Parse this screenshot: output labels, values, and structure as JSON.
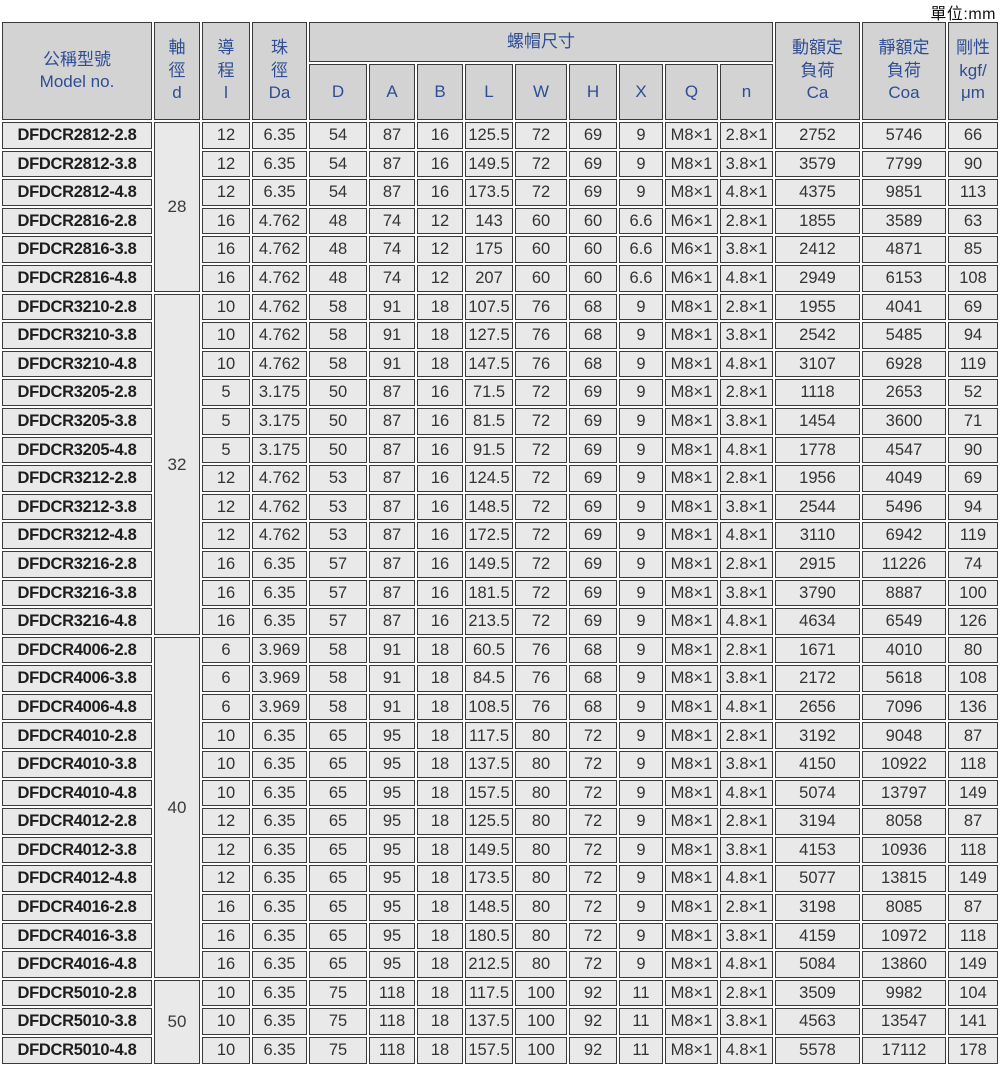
{
  "unit_label": "單位:mm",
  "table": {
    "header": {
      "model": "公稱型號\nModel no.",
      "shaft": "軸\n徑\nd",
      "lead": "導\n程\nl",
      "ball": "珠\n徑\nDa",
      "nut_group": "螺帽尺寸",
      "nut_cols": [
        "D",
        "A",
        "B",
        "L",
        "W",
        "H",
        "X",
        "Q",
        "n"
      ],
      "dynamic_load": "動額定\n負荷\nCa",
      "static_load": "靜額定\n負荷\nCoa",
      "rigidity": "剛性\nkgf/\nμm"
    },
    "colors": {
      "header_bg": "#d3d3d3",
      "cell_bg": "#e9e9e9",
      "header_text": "#2e4d93",
      "cell_text": "#333333",
      "border": "#3a3a3a"
    },
    "groups": [
      {
        "d": "28",
        "rows": [
          [
            "DFDCR2812-2.8",
            "12",
            "6.35",
            "54",
            "87",
            "16",
            "125.5",
            "72",
            "69",
            "9",
            "M8×1",
            "2.8×1",
            "2752",
            "5746",
            "66"
          ],
          [
            "DFDCR2812-3.8",
            "12",
            "6.35",
            "54",
            "87",
            "16",
            "149.5",
            "72",
            "69",
            "9",
            "M8×1",
            "3.8×1",
            "3579",
            "7799",
            "90"
          ],
          [
            "DFDCR2812-4.8",
            "12",
            "6.35",
            "54",
            "87",
            "16",
            "173.5",
            "72",
            "69",
            "9",
            "M8×1",
            "4.8×1",
            "4375",
            "9851",
            "113"
          ],
          [
            "DFDCR2816-2.8",
            "16",
            "4.762",
            "48",
            "74",
            "12",
            "143",
            "60",
            "60",
            "6.6",
            "M6×1",
            "2.8×1",
            "1855",
            "3589",
            "63"
          ],
          [
            "DFDCR2816-3.8",
            "16",
            "4.762",
            "48",
            "74",
            "12",
            "175",
            "60",
            "60",
            "6.6",
            "M6×1",
            "3.8×1",
            "2412",
            "4871",
            "85"
          ],
          [
            "DFDCR2816-4.8",
            "16",
            "4.762",
            "48",
            "74",
            "12",
            "207",
            "60",
            "60",
            "6.6",
            "M6×1",
            "4.8×1",
            "2949",
            "6153",
            "108"
          ]
        ]
      },
      {
        "d": "32",
        "rows": [
          [
            "DFDCR3210-2.8",
            "10",
            "4.762",
            "58",
            "91",
            "18",
            "107.5",
            "76",
            "68",
            "9",
            "M8×1",
            "2.8×1",
            "1955",
            "4041",
            "69"
          ],
          [
            "DFDCR3210-3.8",
            "10",
            "4.762",
            "58",
            "91",
            "18",
            "127.5",
            "76",
            "68",
            "9",
            "M8×1",
            "3.8×1",
            "2542",
            "5485",
            "94"
          ],
          [
            "DFDCR3210-4.8",
            "10",
            "4.762",
            "58",
            "91",
            "18",
            "147.5",
            "76",
            "68",
            "9",
            "M8×1",
            "4.8×1",
            "3107",
            "6928",
            "119"
          ],
          [
            "DFDCR3205-2.8",
            "5",
            "3.175",
            "50",
            "87",
            "16",
            "71.5",
            "72",
            "69",
            "9",
            "M8×1",
            "2.8×1",
            "1118",
            "2653",
            "52"
          ],
          [
            "DFDCR3205-3.8",
            "5",
            "3.175",
            "50",
            "87",
            "16",
            "81.5",
            "72",
            "69",
            "9",
            "M8×1",
            "3.8×1",
            "1454",
            "3600",
            "71"
          ],
          [
            "DFDCR3205-4.8",
            "5",
            "3.175",
            "50",
            "87",
            "16",
            "91.5",
            "72",
            "69",
            "9",
            "M8×1",
            "4.8×1",
            "1778",
            "4547",
            "90"
          ],
          [
            "DFDCR3212-2.8",
            "12",
            "4.762",
            "53",
            "87",
            "16",
            "124.5",
            "72",
            "69",
            "9",
            "M8×1",
            "2.8×1",
            "1956",
            "4049",
            "69"
          ],
          [
            "DFDCR3212-3.8",
            "12",
            "4.762",
            "53",
            "87",
            "16",
            "148.5",
            "72",
            "69",
            "9",
            "M8×1",
            "3.8×1",
            "2544",
            "5496",
            "94"
          ],
          [
            "DFDCR3212-4.8",
            "12",
            "4.762",
            "53",
            "87",
            "16",
            "172.5",
            "72",
            "69",
            "9",
            "M8×1",
            "4.8×1",
            "3110",
            "6942",
            "119"
          ],
          [
            "DFDCR3216-2.8",
            "16",
            "6.35",
            "57",
            "87",
            "16",
            "149.5",
            "72",
            "69",
            "9",
            "M8×1",
            "2.8×1",
            "2915",
            "11226",
            "74"
          ],
          [
            "DFDCR3216-3.8",
            "16",
            "6.35",
            "57",
            "87",
            "16",
            "181.5",
            "72",
            "69",
            "9",
            "M8×1",
            "3.8×1",
            "3790",
            "8887",
            "100"
          ],
          [
            "DFDCR3216-4.8",
            "16",
            "6.35",
            "57",
            "87",
            "16",
            "213.5",
            "72",
            "69",
            "9",
            "M8×1",
            "4.8×1",
            "4634",
            "6549",
            "126"
          ]
        ]
      },
      {
        "d": "40",
        "rows": [
          [
            "DFDCR4006-2.8",
            "6",
            "3.969",
            "58",
            "91",
            "18",
            "60.5",
            "76",
            "68",
            "9",
            "M8×1",
            "2.8×1",
            "1671",
            "4010",
            "80"
          ],
          [
            "DFDCR4006-3.8",
            "6",
            "3.969",
            "58",
            "91",
            "18",
            "84.5",
            "76",
            "68",
            "9",
            "M8×1",
            "3.8×1",
            "2172",
            "5618",
            "108"
          ],
          [
            "DFDCR4006-4.8",
            "6",
            "3.969",
            "58",
            "91",
            "18",
            "108.5",
            "76",
            "68",
            "9",
            "M8×1",
            "4.8×1",
            "2656",
            "7096",
            "136"
          ],
          [
            "DFDCR4010-2.8",
            "10",
            "6.35",
            "65",
            "95",
            "18",
            "117.5",
            "80",
            "72",
            "9",
            "M8×1",
            "2.8×1",
            "3192",
            "9048",
            "87"
          ],
          [
            "DFDCR4010-3.8",
            "10",
            "6.35",
            "65",
            "95",
            "18",
            "137.5",
            "80",
            "72",
            "9",
            "M8×1",
            "3.8×1",
            "4150",
            "10922",
            "118"
          ],
          [
            "DFDCR4010-4.8",
            "10",
            "6.35",
            "65",
            "95",
            "18",
            "157.5",
            "80",
            "72",
            "9",
            "M8×1",
            "4.8×1",
            "5074",
            "13797",
            "149"
          ],
          [
            "DFDCR4012-2.8",
            "12",
            "6.35",
            "65",
            "95",
            "18",
            "125.5",
            "80",
            "72",
            "9",
            "M8×1",
            "2.8×1",
            "3194",
            "8058",
            "87"
          ],
          [
            "DFDCR4012-3.8",
            "12",
            "6.35",
            "65",
            "95",
            "18",
            "149.5",
            "80",
            "72",
            "9",
            "M8×1",
            "3.8×1",
            "4153",
            "10936",
            "118"
          ],
          [
            "DFDCR4012-4.8",
            "12",
            "6.35",
            "65",
            "95",
            "18",
            "173.5",
            "80",
            "72",
            "9",
            "M8×1",
            "4.8×1",
            "5077",
            "13815",
            "149"
          ],
          [
            "DFDCR4016-2.8",
            "16",
            "6.35",
            "65",
            "95",
            "18",
            "148.5",
            "80",
            "72",
            "9",
            "M8×1",
            "2.8×1",
            "3198",
            "8085",
            "87"
          ],
          [
            "DFDCR4016-3.8",
            "16",
            "6.35",
            "65",
            "95",
            "18",
            "180.5",
            "80",
            "72",
            "9",
            "M8×1",
            "3.8×1",
            "4159",
            "10972",
            "118"
          ],
          [
            "DFDCR4016-4.8",
            "16",
            "6.35",
            "65",
            "95",
            "18",
            "212.5",
            "80",
            "72",
            "9",
            "M8×1",
            "4.8×1",
            "5084",
            "13860",
            "149"
          ]
        ]
      },
      {
        "d": "50",
        "rows": [
          [
            "DFDCR5010-2.8",
            "10",
            "6.35",
            "75",
            "118",
            "18",
            "117.5",
            "100",
            "92",
            "11",
            "M8×1",
            "2.8×1",
            "3509",
            "9982",
            "104"
          ],
          [
            "DFDCR5010-3.8",
            "10",
            "6.35",
            "75",
            "118",
            "18",
            "137.5",
            "100",
            "92",
            "11",
            "M8×1",
            "3.8×1",
            "4563",
            "13547",
            "141"
          ],
          [
            "DFDCR5010-4.8",
            "10",
            "6.35",
            "75",
            "118",
            "18",
            "157.5",
            "100",
            "92",
            "11",
            "M8×1",
            "4.8×1",
            "5578",
            "17112",
            "178"
          ]
        ]
      }
    ]
  }
}
